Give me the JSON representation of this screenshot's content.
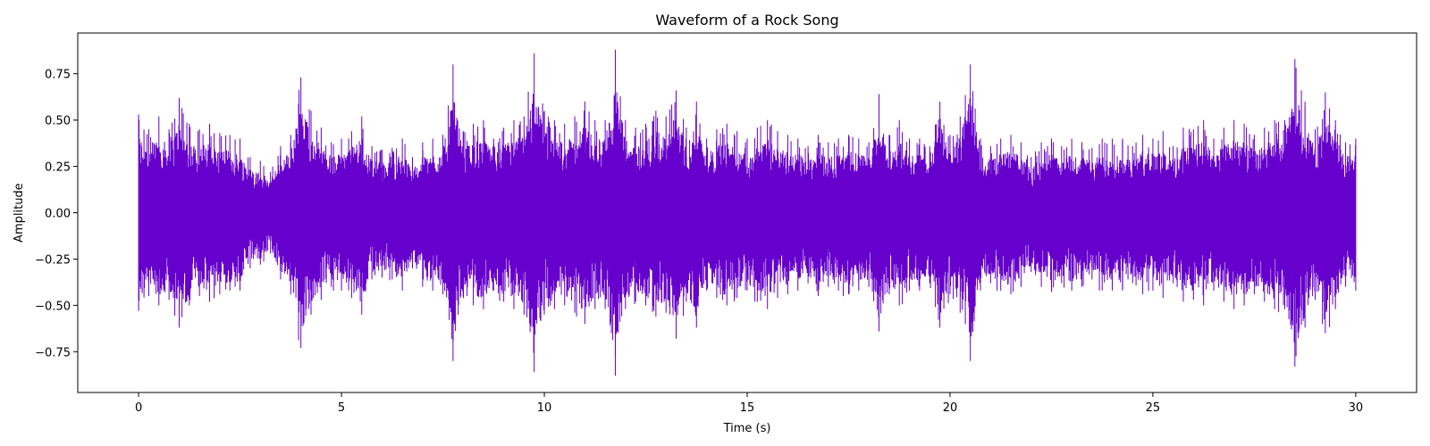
{
  "chart_data": {
    "type": "line",
    "title": "Waveform of a Rock Song",
    "xlabel": "Time (s)",
    "ylabel": "Amplitude",
    "xlim": [
      -1.5,
      31.5
    ],
    "ylim": [
      -0.97,
      0.97
    ],
    "x_ticks": [
      0,
      5,
      10,
      15,
      20,
      25,
      30
    ],
    "x_tick_labels": [
      "0",
      "5",
      "10",
      "15",
      "20",
      "25",
      "30"
    ],
    "y_ticks": [
      -0.75,
      -0.5,
      -0.25,
      0.0,
      0.25,
      0.5,
      0.75
    ],
    "y_tick_labels": [
      "−0.75",
      "−0.50",
      "−0.25",
      "0.00",
      "0.25",
      "0.50",
      "0.75"
    ],
    "grid": false,
    "series": [
      {
        "color": "#6600cc",
        "x": [
          0,
          0.25,
          0.5,
          0.75,
          1,
          1.25,
          1.5,
          1.75,
          2,
          2.25,
          2.5,
          2.75,
          3,
          3.25,
          3.5,
          3.75,
          4,
          4.25,
          4.5,
          4.75,
          5,
          5.25,
          5.5,
          5.75,
          6,
          6.25,
          6.5,
          6.75,
          7,
          7.25,
          7.5,
          7.75,
          8,
          8.25,
          8.5,
          8.75,
          9,
          9.25,
          9.5,
          9.75,
          10,
          10.25,
          10.5,
          10.75,
          11,
          11.25,
          11.5,
          11.75,
          12,
          12.25,
          12.5,
          12.75,
          13,
          13.25,
          13.5,
          13.75,
          14,
          14.25,
          14.5,
          14.75,
          15,
          15.25,
          15.5,
          15.75,
          16,
          16.25,
          16.5,
          16.75,
          17,
          17.25,
          17.5,
          17.75,
          18,
          18.25,
          18.5,
          18.75,
          19,
          19.25,
          19.5,
          19.75,
          20,
          20.25,
          20.5,
          20.75,
          21,
          21.25,
          21.5,
          21.75,
          22,
          22.25,
          22.5,
          22.75,
          23,
          23.25,
          23.5,
          23.75,
          24,
          24.25,
          24.5,
          24.75,
          25,
          25.25,
          25.5,
          25.75,
          26,
          26.25,
          26.5,
          26.75,
          27,
          27.25,
          27.5,
          27.75,
          28,
          28.25,
          28.5,
          28.75,
          29,
          29.25,
          29.5,
          29.75,
          30
        ],
        "y_max": [
          0.53,
          0.45,
          0.52,
          0.45,
          0.62,
          0.48,
          0.45,
          0.48,
          0.43,
          0.42,
          0.4,
          0.3,
          0.28,
          0.22,
          0.36,
          0.42,
          0.73,
          0.55,
          0.46,
          0.38,
          0.4,
          0.44,
          0.52,
          0.36,
          0.34,
          0.35,
          0.4,
          0.3,
          0.38,
          0.4,
          0.42,
          0.8,
          0.44,
          0.48,
          0.5,
          0.4,
          0.46,
          0.5,
          0.52,
          0.86,
          0.55,
          0.5,
          0.48,
          0.52,
          0.6,
          0.5,
          0.5,
          0.88,
          0.5,
          0.46,
          0.48,
          0.55,
          0.52,
          0.66,
          0.46,
          0.6,
          0.4,
          0.45,
          0.48,
          0.44,
          0.4,
          0.46,
          0.5,
          0.44,
          0.42,
          0.4,
          0.36,
          0.42,
          0.38,
          0.4,
          0.42,
          0.4,
          0.38,
          0.64,
          0.42,
          0.5,
          0.4,
          0.4,
          0.36,
          0.6,
          0.42,
          0.52,
          0.8,
          0.4,
          0.36,
          0.4,
          0.42,
          0.38,
          0.3,
          0.38,
          0.4,
          0.36,
          0.4,
          0.38,
          0.35,
          0.4,
          0.4,
          0.4,
          0.36,
          0.42,
          0.4,
          0.44,
          0.36,
          0.46,
          0.45,
          0.5,
          0.4,
          0.46,
          0.5,
          0.48,
          0.42,
          0.46,
          0.5,
          0.5,
          0.83,
          0.6,
          0.45,
          0.65,
          0.5,
          0.38,
          0.4,
          0.38,
          0.36
        ],
        "y_min": [
          -0.53,
          -0.45,
          -0.5,
          -0.47,
          -0.62,
          -0.5,
          -0.45,
          -0.48,
          -0.44,
          -0.42,
          -0.42,
          -0.3,
          -0.28,
          -0.22,
          -0.36,
          -0.44,
          -0.73,
          -0.55,
          -0.47,
          -0.4,
          -0.42,
          -0.46,
          -0.55,
          -0.36,
          -0.35,
          -0.36,
          -0.42,
          -0.3,
          -0.4,
          -0.42,
          -0.44,
          -0.8,
          -0.45,
          -0.5,
          -0.52,
          -0.42,
          -0.48,
          -0.52,
          -0.55,
          -0.86,
          -0.55,
          -0.52,
          -0.5,
          -0.54,
          -0.6,
          -0.52,
          -0.52,
          -0.88,
          -0.52,
          -0.48,
          -0.5,
          -0.56,
          -0.54,
          -0.68,
          -0.48,
          -0.62,
          -0.42,
          -0.46,
          -0.5,
          -0.46,
          -0.42,
          -0.48,
          -0.52,
          -0.46,
          -0.44,
          -0.42,
          -0.38,
          -0.44,
          -0.4,
          -0.42,
          -0.44,
          -0.42,
          -0.4,
          -0.64,
          -0.44,
          -0.5,
          -0.42,
          -0.42,
          -0.38,
          -0.62,
          -0.44,
          -0.54,
          -0.8,
          -0.42,
          -0.38,
          -0.42,
          -0.44,
          -0.4,
          -0.32,
          -0.4,
          -0.42,
          -0.38,
          -0.42,
          -0.4,
          -0.36,
          -0.42,
          -0.42,
          -0.42,
          -0.38,
          -0.44,
          -0.42,
          -0.46,
          -0.38,
          -0.48,
          -0.47,
          -0.5,
          -0.42,
          -0.48,
          -0.52,
          -0.5,
          -0.44,
          -0.48,
          -0.52,
          -0.52,
          -0.83,
          -0.62,
          -0.47,
          -0.65,
          -0.52,
          -0.4,
          -0.42,
          -0.4,
          -0.38
        ]
      }
    ]
  }
}
